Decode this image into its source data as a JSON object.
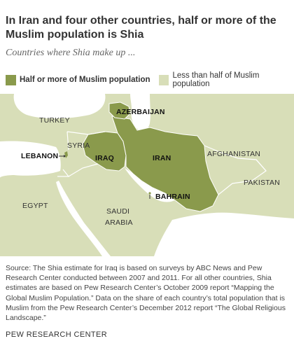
{
  "title": "In Iran and four other countries, half or more of the Muslim population is Shia",
  "subtitle": "Countries where Shia make up ...",
  "legend": {
    "half_or_more": "Half or more of Muslim population",
    "less_than_half": "Less than half of Muslim population"
  },
  "colors": {
    "half_or_more": "#8a9a4c",
    "less_than_half": "#d8deb8",
    "water": "#ffffff",
    "border": "#ffffff"
  },
  "countries": {
    "turkey": "TURKEY",
    "syria": "SYRIA",
    "lebanon": "LEBANON",
    "iraq": "IRAQ",
    "iran": "IRAN",
    "azerbaijan": "AZERBAIJAN",
    "bahrain": "BAHRAIN",
    "afghanistan": "AFGHANISTAN",
    "pakistan": "PAKISTAN",
    "egypt": "EGYPT",
    "saudi_line1": "SAUDI",
    "saudi_line2": "ARABIA"
  },
  "source": "Source: The Shia estimate for Iraq is based on surveys by ABC News and Pew Research Center conducted between 2007 and 2011. For all other countries, Shia estimates are based on Pew Research Center’s October 2009 report “Mapping the Global Muslim Population.” Data on the share of each country’s total population that is Muslim from the Pew Research Center’s December 2012 report “The Global Religious Landscape.”",
  "credit": "PEW RESEARCH CENTER"
}
